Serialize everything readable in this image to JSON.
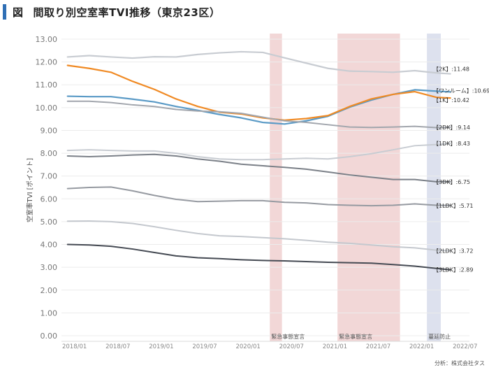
{
  "header": {
    "figure_label": "図",
    "title": "間取り別空室率TVI推移（東京23区）"
  },
  "chart_data": {
    "type": "line",
    "title": "間取り別空室率TVI推移（東京23区）",
    "ylabel": "空室率TVI [ポイント]",
    "xlabel": "",
    "ylim": [
      0,
      13
    ],
    "yticks": [
      "0.00",
      "1.00",
      "2.00",
      "3.00",
      "4.00",
      "5.00",
      "6.00",
      "7.00",
      "8.00",
      "9.00",
      "10.00",
      "11.00",
      "12.00",
      "13.00"
    ],
    "x_start": "2017/11",
    "x_end": "2022/07",
    "xticks": [
      {
        "label": "2018/01",
        "t": 2018.0
      },
      {
        "label": "2018/07",
        "t": 2018.5
      },
      {
        "label": "2019/01",
        "t": 2019.0
      },
      {
        "label": "2019/07",
        "t": 2019.5
      },
      {
        "label": "2020/01",
        "t": 2020.0
      },
      {
        "label": "2020/07",
        "t": 2020.5
      },
      {
        "label": "2021/01",
        "t": 2021.0
      },
      {
        "label": "2021/07",
        "t": 2021.5
      },
      {
        "label": "2022/01",
        "t": 2022.0
      },
      {
        "label": "2022/07",
        "t": 2022.5
      }
    ],
    "shaded_periods": [
      {
        "label": "緊急事態宣言",
        "start": 2020.25,
        "end": 2020.39,
        "color": "#f2d7d7"
      },
      {
        "label": "緊急事態宣言",
        "start": 2021.03,
        "end": 2021.75,
        "color": "#f2d7d7"
      },
      {
        "label": "蔓延防止",
        "start": 2022.06,
        "end": 2022.22,
        "color": "#dde1ee"
      }
    ],
    "series": [
      {
        "name": "2K",
        "label": "【2K】",
        "end_value": "11.48",
        "color": "#c8ccd2",
        "width": 2.2,
        "x": [
          2017.92,
          2018.17,
          2018.42,
          2018.67,
          2018.92,
          2019.17,
          2019.42,
          2019.67,
          2019.92,
          2020.17,
          2020.42,
          2020.67,
          2020.92,
          2021.17,
          2021.42,
          2021.67,
          2021.92,
          2022.17,
          2022.33
        ],
        "values": [
          12.22,
          12.28,
          12.22,
          12.17,
          12.23,
          12.22,
          12.33,
          12.4,
          12.45,
          12.42,
          12.18,
          11.95,
          11.72,
          11.6,
          11.58,
          11.55,
          11.62,
          11.52,
          11.48
        ]
      },
      {
        "name": "ワンルーム",
        "label": "【ワンルーム】",
        "end_value": "10.69",
        "color": "#5a9ac6",
        "width": 2.2,
        "x": [
          2017.92,
          2018.17,
          2018.42,
          2018.67,
          2018.92,
          2019.17,
          2019.42,
          2019.67,
          2019.92,
          2020.17,
          2020.42,
          2020.67,
          2020.92,
          2021.17,
          2021.42,
          2021.67,
          2021.92,
          2022.17,
          2022.33
        ],
        "values": [
          10.5,
          10.48,
          10.48,
          10.37,
          10.25,
          10.05,
          9.88,
          9.7,
          9.55,
          9.35,
          9.28,
          9.42,
          9.62,
          10.02,
          10.33,
          10.58,
          10.78,
          10.72,
          10.69
        ]
      },
      {
        "name": "1K",
        "label": "【1K】",
        "end_value": "10.42",
        "color": "#f08a24",
        "width": 2.2,
        "x": [
          2017.92,
          2018.17,
          2018.42,
          2018.67,
          2018.92,
          2019.17,
          2019.42,
          2019.67,
          2019.92,
          2020.17,
          2020.42,
          2020.67,
          2020.92,
          2021.17,
          2021.42,
          2021.67,
          2021.92,
          2022.17,
          2022.33
        ],
        "values": [
          11.85,
          11.72,
          11.55,
          11.15,
          10.8,
          10.38,
          10.05,
          9.8,
          9.72,
          9.55,
          9.45,
          9.52,
          9.65,
          10.05,
          10.38,
          10.58,
          10.7,
          10.45,
          10.42
        ]
      },
      {
        "name": "2DK",
        "label": "【2DK】",
        "end_value": "9.14",
        "color": "#a2a6ad",
        "width": 2,
        "x": [
          2017.92,
          2018.17,
          2018.42,
          2018.67,
          2018.92,
          2019.17,
          2019.42,
          2019.67,
          2019.92,
          2020.17,
          2020.42,
          2020.67,
          2020.92,
          2021.17,
          2021.42,
          2021.67,
          2021.92,
          2022.17,
          2022.33
        ],
        "values": [
          10.28,
          10.28,
          10.22,
          10.12,
          10.05,
          9.92,
          9.85,
          9.82,
          9.75,
          9.58,
          9.42,
          9.35,
          9.25,
          9.15,
          9.13,
          9.15,
          9.18,
          9.12,
          9.14
        ]
      },
      {
        "name": "1DK",
        "label": "【1DK】",
        "end_value": "8.43",
        "color": "#c8ccd2",
        "width": 2,
        "x": [
          2017.92,
          2018.17,
          2018.42,
          2018.67,
          2018.92,
          2019.17,
          2019.42,
          2019.67,
          2019.92,
          2020.17,
          2020.42,
          2020.67,
          2020.92,
          2021.17,
          2021.42,
          2021.67,
          2021.92,
          2022.17,
          2022.33
        ],
        "values": [
          8.12,
          8.15,
          8.12,
          8.1,
          8.1,
          8.0,
          7.85,
          7.75,
          7.72,
          7.72,
          7.75,
          7.78,
          7.75,
          7.85,
          7.98,
          8.15,
          8.33,
          8.38,
          8.43
        ]
      },
      {
        "name": "3DK",
        "label": "【3DK】",
        "end_value": "6.75",
        "color": "#7b8088",
        "width": 2,
        "x": [
          2017.92,
          2018.17,
          2018.42,
          2018.67,
          2018.92,
          2019.17,
          2019.42,
          2019.67,
          2019.92,
          2020.17,
          2020.42,
          2020.67,
          2020.92,
          2021.17,
          2021.42,
          2021.67,
          2021.92,
          2022.17,
          2022.33
        ],
        "values": [
          7.88,
          7.85,
          7.88,
          7.92,
          7.95,
          7.88,
          7.75,
          7.65,
          7.52,
          7.45,
          7.38,
          7.3,
          7.18,
          7.05,
          6.95,
          6.85,
          6.85,
          6.75,
          6.75
        ]
      },
      {
        "name": "1LDK",
        "label": "【1LDK】",
        "end_value": "5.71",
        "color": "#969aa1",
        "width": 2,
        "x": [
          2017.92,
          2018.17,
          2018.42,
          2018.67,
          2018.92,
          2019.17,
          2019.42,
          2019.67,
          2019.92,
          2020.17,
          2020.42,
          2020.67,
          2020.92,
          2021.17,
          2021.42,
          2021.67,
          2021.92,
          2022.17,
          2022.33
        ],
        "values": [
          6.45,
          6.5,
          6.52,
          6.35,
          6.15,
          5.98,
          5.88,
          5.9,
          5.92,
          5.92,
          5.85,
          5.82,
          5.75,
          5.72,
          5.7,
          5.72,
          5.78,
          5.72,
          5.71
        ]
      },
      {
        "name": "2LDK",
        "label": "【2LDK】",
        "end_value": "3.72",
        "color": "#c4c8ce",
        "width": 2,
        "x": [
          2017.92,
          2018.17,
          2018.42,
          2018.67,
          2018.92,
          2019.17,
          2019.42,
          2019.67,
          2019.92,
          2020.17,
          2020.42,
          2020.67,
          2020.92,
          2021.17,
          2021.42,
          2021.67,
          2021.92,
          2022.17,
          2022.33
        ],
        "values": [
          5.02,
          5.03,
          5.0,
          4.92,
          4.78,
          4.62,
          4.48,
          4.38,
          4.35,
          4.3,
          4.25,
          4.18,
          4.1,
          4.05,
          3.98,
          3.9,
          3.85,
          3.75,
          3.72
        ]
      },
      {
        "name": "3LDK",
        "label": "【3LDK】",
        "end_value": "2.89",
        "color": "#454a53",
        "width": 2,
        "x": [
          2017.92,
          2018.17,
          2018.42,
          2018.67,
          2018.92,
          2019.17,
          2019.42,
          2019.67,
          2019.92,
          2020.17,
          2020.42,
          2020.67,
          2020.92,
          2021.17,
          2021.42,
          2021.67,
          2021.92,
          2022.17,
          2022.33
        ],
        "values": [
          4.0,
          3.98,
          3.92,
          3.8,
          3.65,
          3.5,
          3.42,
          3.38,
          3.33,
          3.3,
          3.28,
          3.25,
          3.22,
          3.2,
          3.18,
          3.12,
          3.05,
          2.95,
          2.89
        ]
      }
    ]
  },
  "footer": {
    "source": "分析：株式会社タス"
  }
}
